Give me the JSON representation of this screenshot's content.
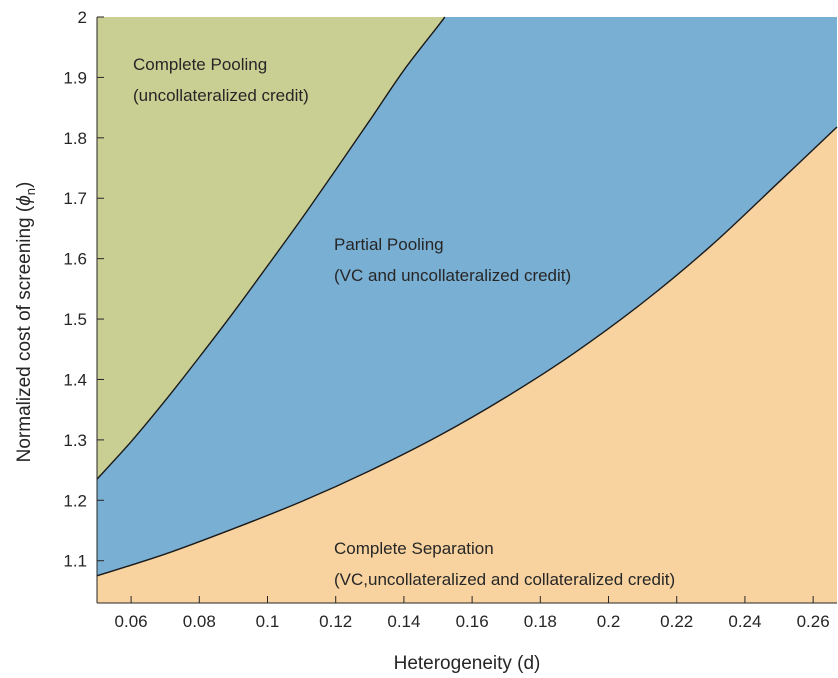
{
  "chart_data": {
    "type": "area",
    "xlabel": "Heterogeneity (d)",
    "ylabel": "Normalized cost of screening (",
    "ylabel_symbol": "ϕ",
    "ylabel_sub": "n",
    "ylabel_close": ")",
    "xlim": [
      0.05,
      0.267
    ],
    "ylim": [
      1.03,
      2.0
    ],
    "xticks": [
      0.06,
      0.08,
      0.1,
      0.12,
      0.14,
      0.16,
      0.18,
      0.2,
      0.22,
      0.24,
      0.26
    ],
    "xtick_labels": [
      "0.06",
      "0.08",
      "0.1",
      "0.12",
      "0.14",
      "0.16",
      "0.18",
      "0.2",
      "0.22",
      "0.24",
      "0.26"
    ],
    "yticks": [
      1.1,
      1.2,
      1.3,
      1.4,
      1.5,
      1.6,
      1.7,
      1.8,
      1.9,
      2.0
    ],
    "ytick_labels": [
      "1.1",
      "1.2",
      "1.3",
      "1.4",
      "1.5",
      "1.6",
      "1.7",
      "1.8",
      "1.9",
      "2"
    ],
    "grid": false,
    "upper_boundary": {
      "x": [
        0.05,
        0.06,
        0.07,
        0.08,
        0.09,
        0.1,
        0.11,
        0.12,
        0.13,
        0.14,
        0.15,
        0.152
      ],
      "y": [
        1.235,
        1.297,
        1.365,
        1.437,
        1.511,
        1.588,
        1.666,
        1.747,
        1.829,
        1.912,
        1.985,
        2.0
      ]
    },
    "lower_boundary": {
      "x": [
        0.05,
        0.07,
        0.09,
        0.11,
        0.13,
        0.15,
        0.17,
        0.19,
        0.21,
        0.23,
        0.25,
        0.267
      ],
      "y": [
        1.075,
        1.111,
        1.153,
        1.198,
        1.249,
        1.306,
        1.371,
        1.444,
        1.527,
        1.621,
        1.727,
        1.818
      ]
    },
    "regions": [
      {
        "name": "Complete Pooling",
        "sub": "(uncollateralized credit)",
        "color": "#c9cf92"
      },
      {
        "name": "Partial Pooling",
        "sub": "(VC and uncollateralized credit)",
        "color": "#7aafd4"
      },
      {
        "name": "Complete Separation",
        "sub": "(VC,uncollateralized and collateralized credit)",
        "color": "#f8d3a0"
      }
    ]
  }
}
